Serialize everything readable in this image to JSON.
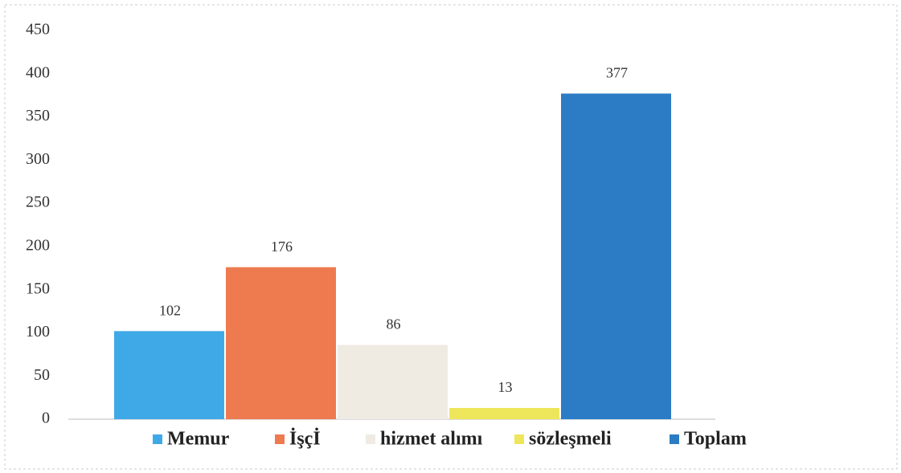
{
  "chart_data": {
    "type": "bar",
    "series": [
      {
        "name": "Memur",
        "color": "#3fa9e8",
        "values": [
          102
        ]
      },
      {
        "name": "İşçİ",
        "color": "#ee7a50",
        "values": [
          176
        ]
      },
      {
        "name": "hizmet alımı",
        "color": "#efebe3",
        "values": [
          86
        ]
      },
      {
        "name": "sözleşmeli",
        "color": "#eee65a",
        "values": [
          13
        ]
      },
      {
        "name": "Toplam",
        "color": "#2b7cc4",
        "values": [
          377
        ]
      }
    ],
    "ylim": [
      0,
      450
    ],
    "yticks": [
      0,
      50,
      100,
      150,
      200,
      250,
      300,
      350,
      400,
      450
    ],
    "legend": "bottom"
  }
}
